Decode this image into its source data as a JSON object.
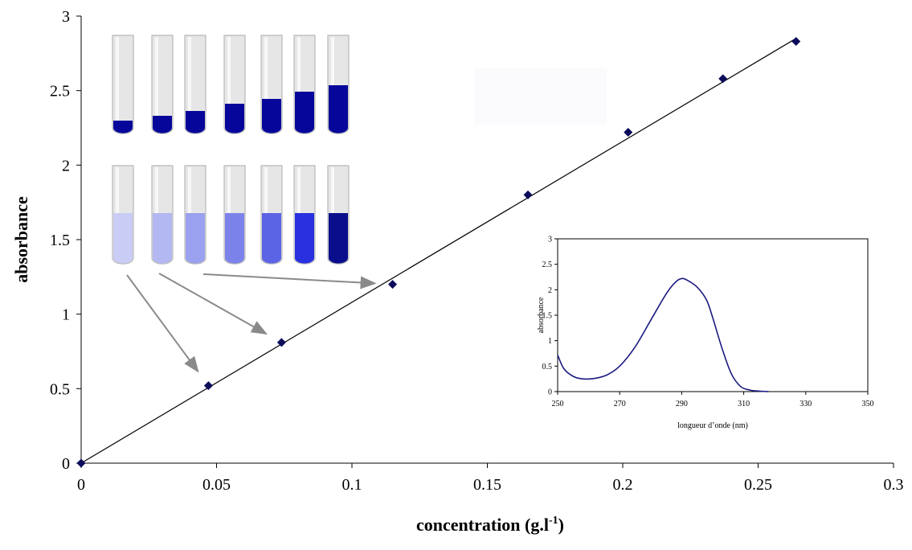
{
  "colors": {
    "axis": "#000000",
    "fit_line": "#000000",
    "marker": "#0b0b5a",
    "arrow": "#8a8a8a",
    "spectrum_line": "#1a1a80",
    "tube_glass": "#e6e6e6",
    "tube_shadow": "#b8b8b8"
  },
  "chart_data": [
    {
      "type": "scatter",
      "title": "",
      "xlabel": "concentration (g.l",
      "xlabel_sup": "-1",
      "xlabel_close": ")",
      "ylabel": "absorbance",
      "xlim": [
        0,
        0.3
      ],
      "ylim": [
        0,
        3
      ],
      "x_ticks": [
        0,
        0.05,
        0.1,
        0.15,
        0.2,
        0.25,
        0.3
      ],
      "y_ticks": [
        0,
        0.5,
        1,
        1.5,
        2,
        2.5,
        3
      ],
      "x_tick_labels": [
        "0",
        "0.05",
        "0.1",
        "0.15",
        "0.2",
        "0.25",
        "0.3"
      ],
      "y_tick_labels": [
        "0",
        "0.5",
        "1",
        "1.5",
        "2",
        "2.5",
        "3"
      ],
      "grid": false,
      "series": [
        {
          "x": [
            0,
            0.047,
            0.074,
            0.115,
            0.165,
            0.202,
            0.237,
            0.264
          ],
          "y": [
            0,
            0.52,
            0.81,
            1.2,
            1.8,
            2.22,
            2.58,
            2.83
          ]
        }
      ],
      "fit_line": {
        "x": [
          0,
          0.264
        ],
        "y": [
          0,
          2.85
        ]
      },
      "annotations": {
        "tubes_concentrated": [
          0.06,
          0.12,
          0.18,
          0.27,
          0.33,
          0.42,
          0.5
        ],
        "tubes_diluted_colors": [
          "#c9ccf5",
          "#b3b8f2",
          "#9aa1ee",
          "#7b83ea",
          "#5c64e6",
          "#2830e0",
          "#0a0e8c"
        ],
        "arrows_to_points": [
          0.047,
          0.074,
          0.115
        ]
      }
    },
    {
      "type": "line",
      "title": "",
      "xlabel": "longueur d’onde (nm)",
      "ylabel": "absorbance",
      "xlim": [
        250,
        350
      ],
      "ylim": [
        0,
        3
      ],
      "x_ticks": [
        250,
        270,
        290,
        310,
        330,
        350
      ],
      "y_ticks": [
        0,
        0.5,
        1,
        1.5,
        2,
        2.5,
        3
      ],
      "x_tick_labels": [
        "250",
        "270",
        "290",
        "310",
        "330",
        "350"
      ],
      "y_tick_labels": [
        "0",
        "0.5",
        "1",
        "1.5",
        "2",
        "2.5",
        "3"
      ],
      "grid": false,
      "series": [
        {
          "x": [
            250,
            252,
            255,
            258,
            262,
            266,
            270,
            275,
            280,
            285,
            288,
            290,
            292,
            295,
            298,
            300,
            303,
            306,
            309,
            312,
            315,
            318
          ],
          "y": [
            0.72,
            0.45,
            0.3,
            0.25,
            0.26,
            0.33,
            0.5,
            0.88,
            1.4,
            1.92,
            2.15,
            2.22,
            2.18,
            2.05,
            1.8,
            1.45,
            0.85,
            0.35,
            0.1,
            0.03,
            0.01,
            0
          ]
        }
      ]
    }
  ]
}
